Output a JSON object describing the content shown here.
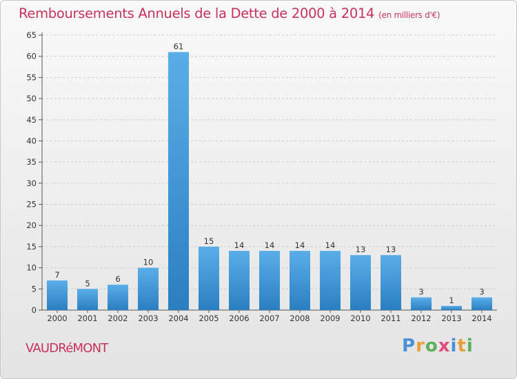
{
  "title": "Remboursements Annuels de la Dette de 2000 à 2014",
  "unit": "(en milliers d'€)",
  "commune": "VAUDRéMONT",
  "logo": {
    "text": "Proxiti",
    "colors": [
      "#4a90d9",
      "#e8a13a",
      "#5bb05b",
      "#e04a7a",
      "#4a90d9",
      "#e8a13a",
      "#5bb05b"
    ]
  },
  "colors": {
    "title": "#c8325c",
    "bar_top": "#5aaee8",
    "bar_bottom": "#2a7fc0",
    "grid": "#cccccc"
  },
  "chart_data": {
    "type": "bar",
    "categories": [
      "2000",
      "2001",
      "2002",
      "2003",
      "2004",
      "2005",
      "2006",
      "2007",
      "2008",
      "2009",
      "2010",
      "2011",
      "2012",
      "2013",
      "2014"
    ],
    "values": [
      7,
      5,
      6,
      10,
      61,
      15,
      14,
      14,
      14,
      14,
      13,
      13,
      3,
      1,
      3
    ],
    "title": "Remboursements Annuels de la Dette de 2000 à 2014",
    "ylim": [
      0,
      65
    ],
    "yticks": [
      0,
      5,
      10,
      15,
      20,
      25,
      30,
      35,
      40,
      45,
      50,
      55,
      60,
      65
    ],
    "grid": "dashed horizontal"
  }
}
